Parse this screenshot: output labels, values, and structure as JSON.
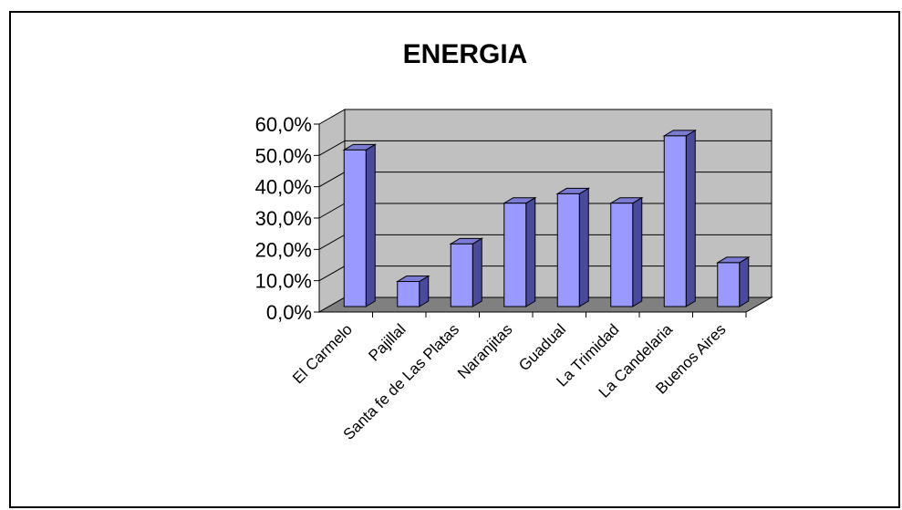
{
  "chart_data": {
    "type": "bar",
    "title": "ENERGIA",
    "categories": [
      "El Carmelo",
      "Pajillal",
      "Santa fe de Las Platas",
      "Naranjitas",
      "Guadual",
      "La Trimidad",
      "La Candelaria",
      "Buenos Aires"
    ],
    "values": [
      50.0,
      8.0,
      20.0,
      33.0,
      36.0,
      33.0,
      54.5,
      14.0
    ],
    "ylim": [
      0,
      60
    ],
    "yticks": [
      "0,0%",
      "10,0%",
      "20,0%",
      "30,0%",
      "40,0%",
      "50,0%",
      "60,0%"
    ],
    "xlabel": "",
    "ylabel": "",
    "grid": true,
    "legend": "none",
    "style": "3d-column",
    "colors": {
      "bar_front": "#9999ff",
      "bar_side": "#4a4a9c",
      "bar_top": "#7b7bd6",
      "back_wall": "#c0c0c0",
      "floor": "#808080",
      "frame": "#000000"
    }
  }
}
